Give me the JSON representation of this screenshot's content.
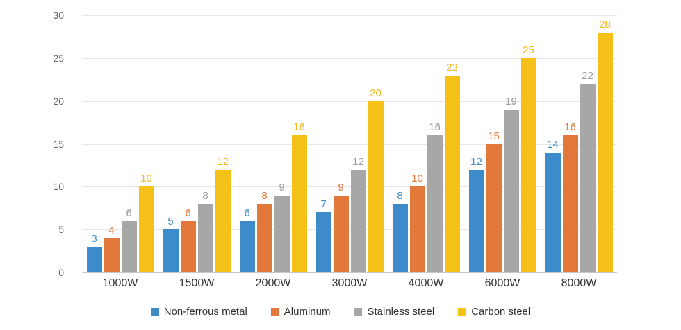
{
  "chart_data": {
    "type": "bar",
    "title": "",
    "xlabel": "",
    "ylabel": "",
    "ylim": [
      0,
      30
    ],
    "yticks": [
      0,
      5,
      10,
      15,
      20,
      25,
      30
    ],
    "grid": true,
    "legend_position": "bottom",
    "categories": [
      "1000W",
      "1500W",
      "2000W",
      "3000W",
      "4000W",
      "6000W",
      "8000W"
    ],
    "series": [
      {
        "name": "Non-ferrous metal",
        "color": "#3d8bca",
        "label_color": "#3d8bca",
        "values": [
          3,
          5,
          6,
          7,
          8,
          12,
          14
        ]
      },
      {
        "name": "Aluminum",
        "color": "#e2793a",
        "label_color": "#e2793a",
        "values": [
          4,
          6,
          8,
          9,
          10,
          15,
          16
        ]
      },
      {
        "name": "Stainless steel",
        "color": "#a7a7a7",
        "label_color": "#9b9b9b",
        "values": [
          6,
          8,
          9,
          12,
          16,
          19,
          22
        ]
      },
      {
        "name": "Carbon steel",
        "color": "#f5c018",
        "label_color": "#f0b81a",
        "values": [
          10,
          12,
          16,
          20,
          23,
          25,
          28
        ]
      }
    ]
  }
}
